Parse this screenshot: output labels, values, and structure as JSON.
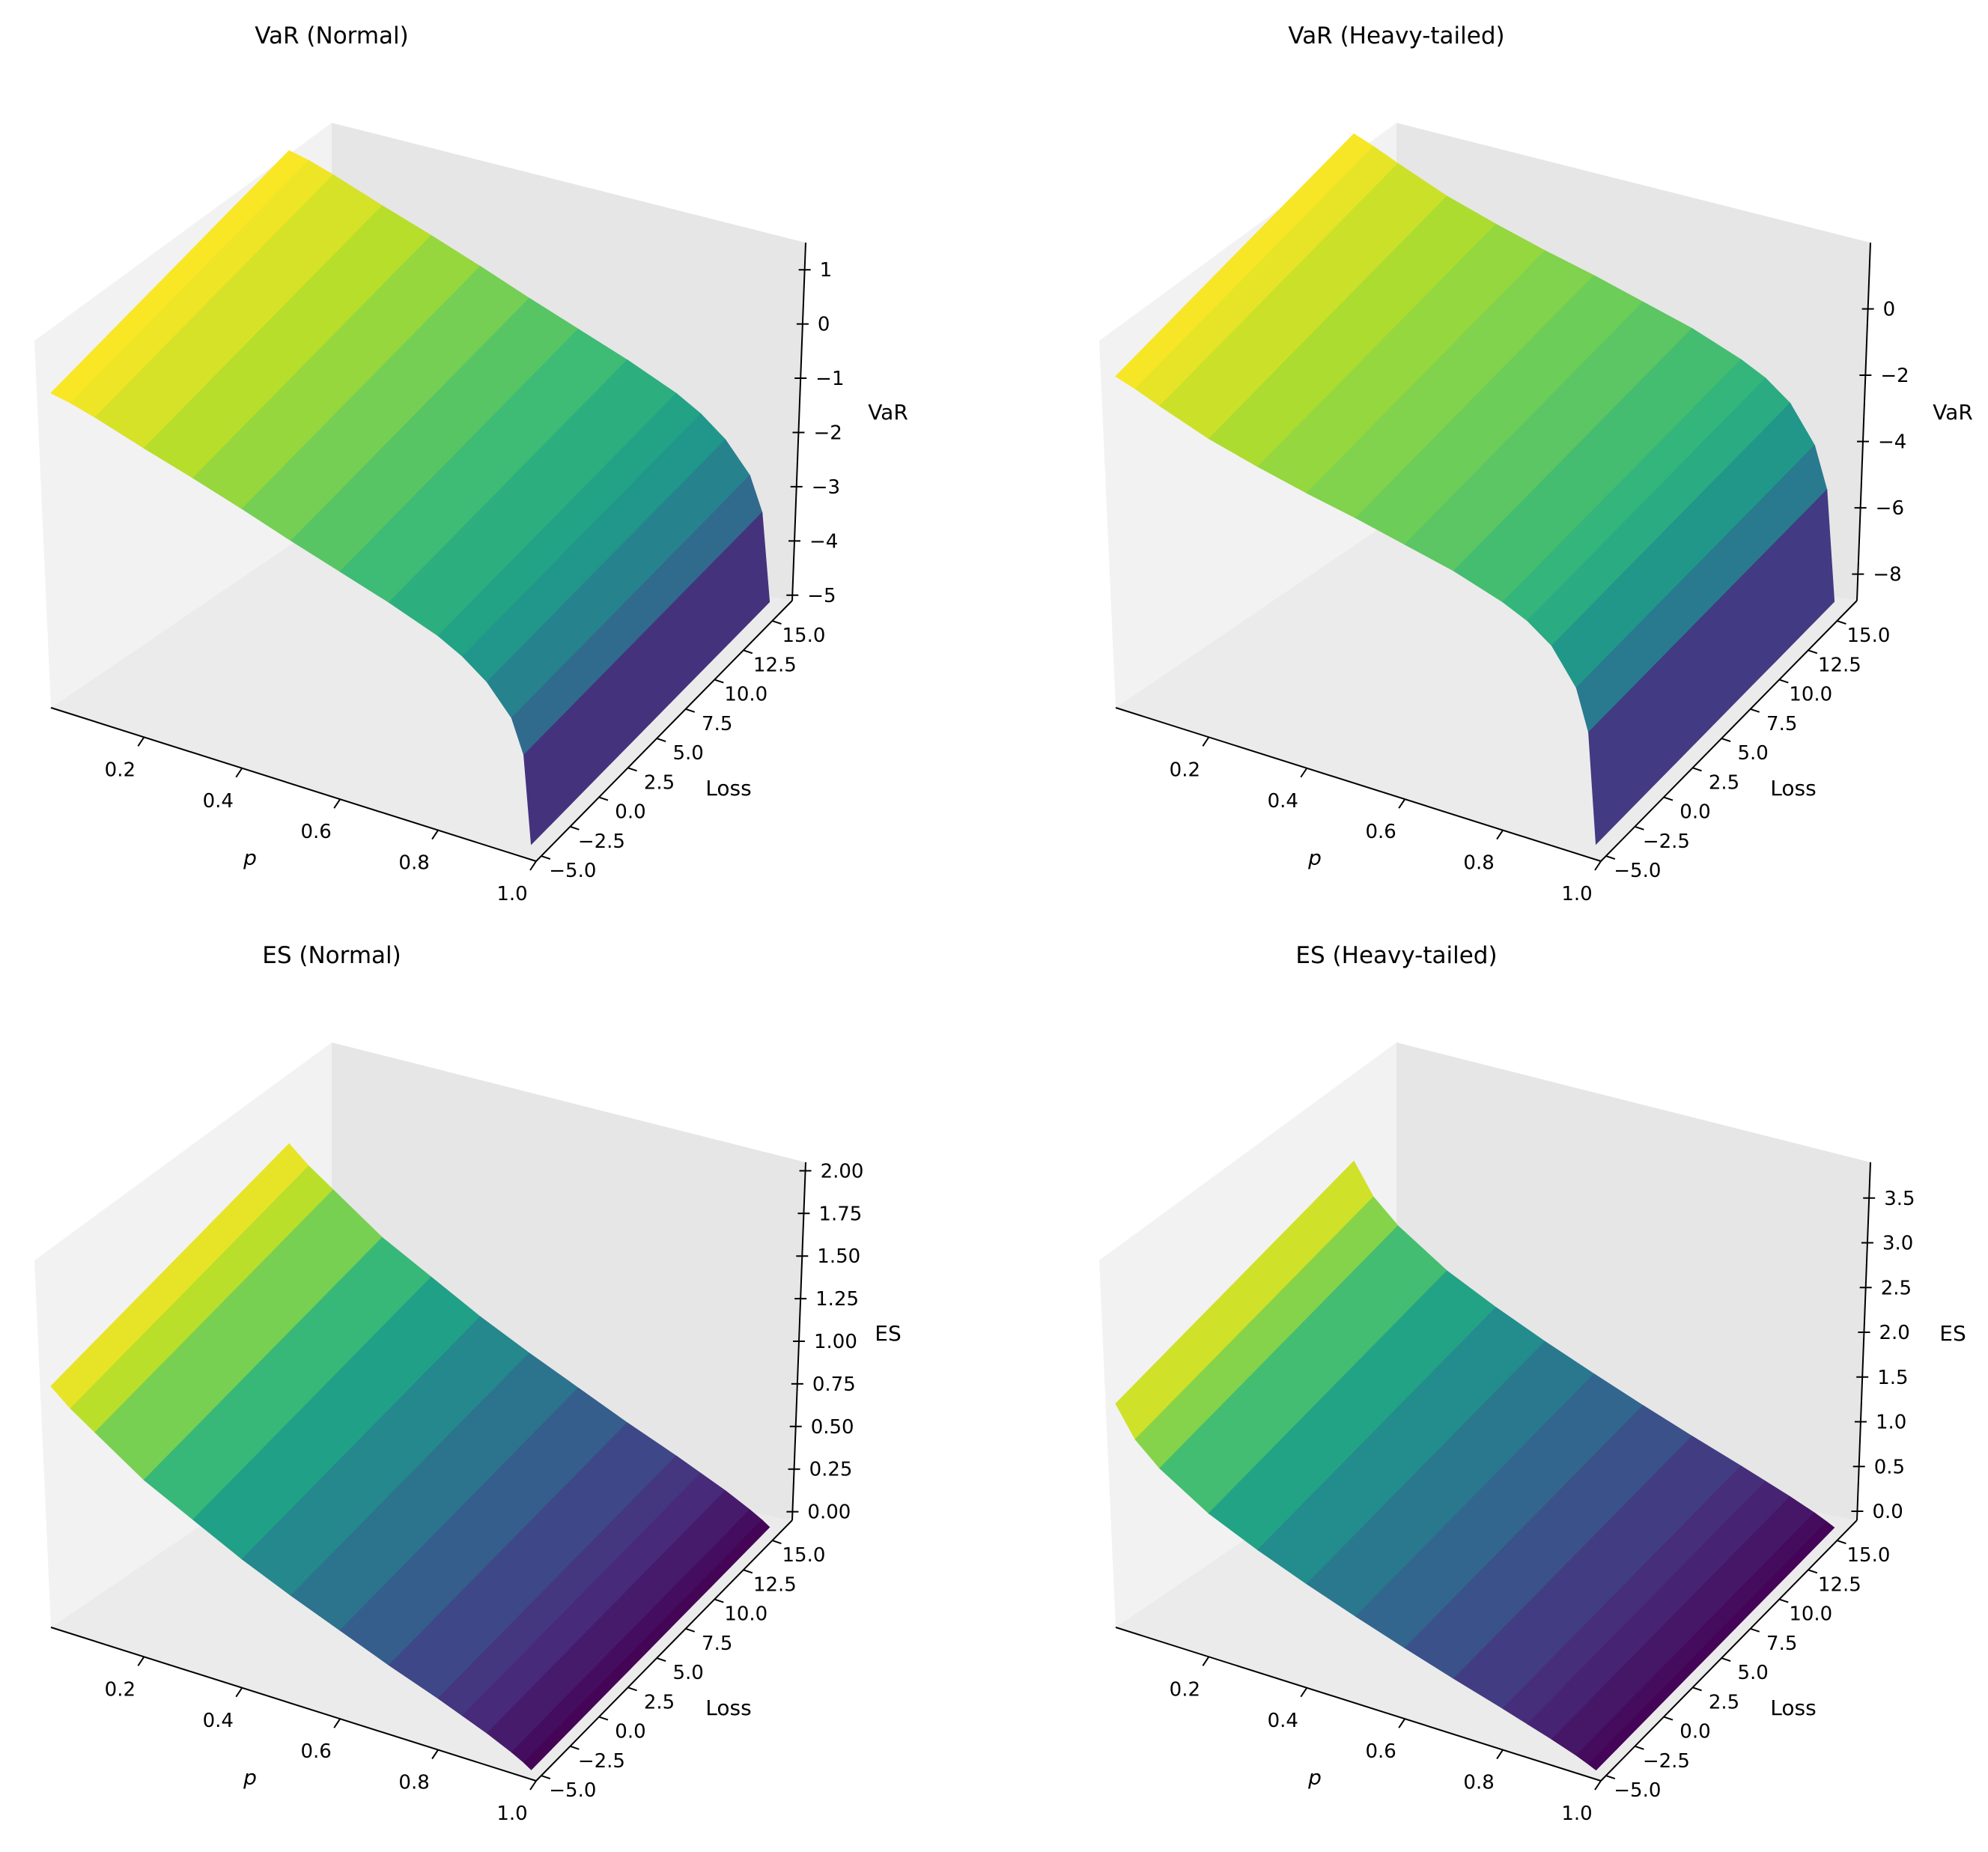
{
  "figure": {
    "colormap": [
      "#440154",
      "#482878",
      "#3e4989",
      "#31688e",
      "#26828e",
      "#1f9e89",
      "#35b779",
      "#6ece58",
      "#b5de2b",
      "#fde725"
    ],
    "pane_colors": {
      "left": "#f2f2f2",
      "right": "#e6e6e6",
      "floor": "#ebebeb"
    }
  },
  "chart_data": [
    {
      "type": "surface",
      "title": "VaR (Normal)",
      "xlabel": "p",
      "ylabel": "Loss",
      "zlabel": "VaR",
      "xlim": [
        0.01,
        1.0
      ],
      "ylim": [
        -5,
        16.5
      ],
      "zlim": [
        -5.1,
        1.5
      ],
      "xticks": [
        "0.2",
        "0.4",
        "0.6",
        "0.8",
        "1.0"
      ],
      "yticks": [
        "−5.0",
        "−2.5",
        "0.0",
        "2.5",
        "5.0",
        "7.5",
        "10.0",
        "12.5",
        "15.0"
      ],
      "zticks": [
        "−5",
        "−4",
        "−3",
        "−2",
        "−1",
        "0",
        "1"
      ],
      "p_values": [
        0.01,
        0.05,
        0.1,
        0.2,
        0.3,
        0.4,
        0.5,
        0.6,
        0.7,
        0.8,
        0.85,
        0.9,
        0.95,
        0.975,
        0.99
      ],
      "var_values": [
        1.05,
        0.98,
        0.85,
        0.55,
        0.27,
        -0.03,
        -0.35,
        -0.65,
        -0.95,
        -1.3,
        -1.55,
        -1.9,
        -2.45,
        -3.1,
        -4.8
      ],
      "loss_range": [
        -5,
        15
      ],
      "surface_note_hidden": ""
    },
    {
      "type": "surface",
      "title": "VaR (Heavy-tailed)",
      "xlabel": "p",
      "ylabel": "Loss",
      "zlabel": "VaR",
      "xlim": [
        0.01,
        1.0
      ],
      "ylim": [
        -5,
        16.5
      ],
      "zlim": [
        -8.8,
        2.0
      ],
      "xticks": [
        "0.2",
        "0.4",
        "0.6",
        "0.8",
        "1.0"
      ],
      "yticks": [
        "−5.0",
        "−2.5",
        "0.0",
        "2.5",
        "5.0",
        "7.5",
        "10.0",
        "12.5",
        "15.0"
      ],
      "zticks": [
        "−8",
        "−6",
        "−4",
        "−2",
        "0"
      ],
      "p_values": [
        0.01,
        0.05,
        0.1,
        0.2,
        0.3,
        0.4,
        0.5,
        0.6,
        0.7,
        0.8,
        0.85,
        0.9,
        0.95,
        0.975,
        0.99
      ],
      "var_values": [
        1.8,
        1.6,
        1.3,
        0.75,
        0.35,
        0.0,
        -0.3,
        -0.65,
        -1.0,
        -1.5,
        -1.85,
        -2.4,
        -3.5,
        -4.8,
        -8.3
      ],
      "loss_range": [
        -5,
        15
      ]
    },
    {
      "type": "surface",
      "title": "ES (Normal)",
      "xlabel": "p",
      "ylabel": "Loss",
      "zlabel": "ES",
      "xlim": [
        0.01,
        1.0
      ],
      "ylim": [
        -5,
        16.5
      ],
      "zlim": [
        -0.05,
        2.05
      ],
      "xticks": [
        "0.2",
        "0.4",
        "0.6",
        "0.8",
        "1.0"
      ],
      "yticks": [
        "−5.0",
        "−2.5",
        "0.0",
        "2.5",
        "5.0",
        "7.5",
        "10.0",
        "12.5",
        "15.0"
      ],
      "zticks": [
        "0.00",
        "0.25",
        "0.50",
        "0.75",
        "1.00",
        "1.25",
        "1.50",
        "1.75",
        "2.00"
      ],
      "p_values": [
        0.01,
        0.05,
        0.1,
        0.2,
        0.3,
        0.4,
        0.5,
        0.6,
        0.7,
        0.8,
        0.85,
        0.9,
        0.95,
        0.975,
        0.99
      ],
      "es_values": [
        1.45,
        1.35,
        1.25,
        1.05,
        0.9,
        0.75,
        0.62,
        0.5,
        0.38,
        0.27,
        0.21,
        0.15,
        0.08,
        0.04,
        0.01
      ],
      "loss_range": [
        -5,
        15
      ]
    },
    {
      "type": "surface",
      "title": "ES (Heavy-tailed)",
      "xlabel": "p",
      "ylabel": "Loss",
      "zlabel": "ES",
      "xlim": [
        0.01,
        1.0
      ],
      "ylim": [
        -5,
        16.5
      ],
      "zlim": [
        -0.1,
        3.9
      ],
      "xticks": [
        "0.2",
        "0.4",
        "0.6",
        "0.8",
        "1.0"
      ],
      "yticks": [
        "−5.0",
        "−2.5",
        "0.0",
        "2.5",
        "5.0",
        "7.5",
        "10.0",
        "12.5",
        "15.0"
      ],
      "zticks": [
        "0.0",
        "0.5",
        "1.0",
        "1.5",
        "2.0",
        "2.5",
        "3.0",
        "3.5"
      ],
      "p_values": [
        0.01,
        0.05,
        0.1,
        0.2,
        0.3,
        0.4,
        0.5,
        0.6,
        0.7,
        0.8,
        0.85,
        0.9,
        0.95,
        0.975,
        0.99
      ],
      "es_values": [
        2.55,
        2.2,
        1.95,
        1.6,
        1.35,
        1.13,
        0.93,
        0.74,
        0.56,
        0.39,
        0.3,
        0.21,
        0.11,
        0.05,
        0.01
      ],
      "loss_range": [
        -5,
        15
      ]
    }
  ]
}
